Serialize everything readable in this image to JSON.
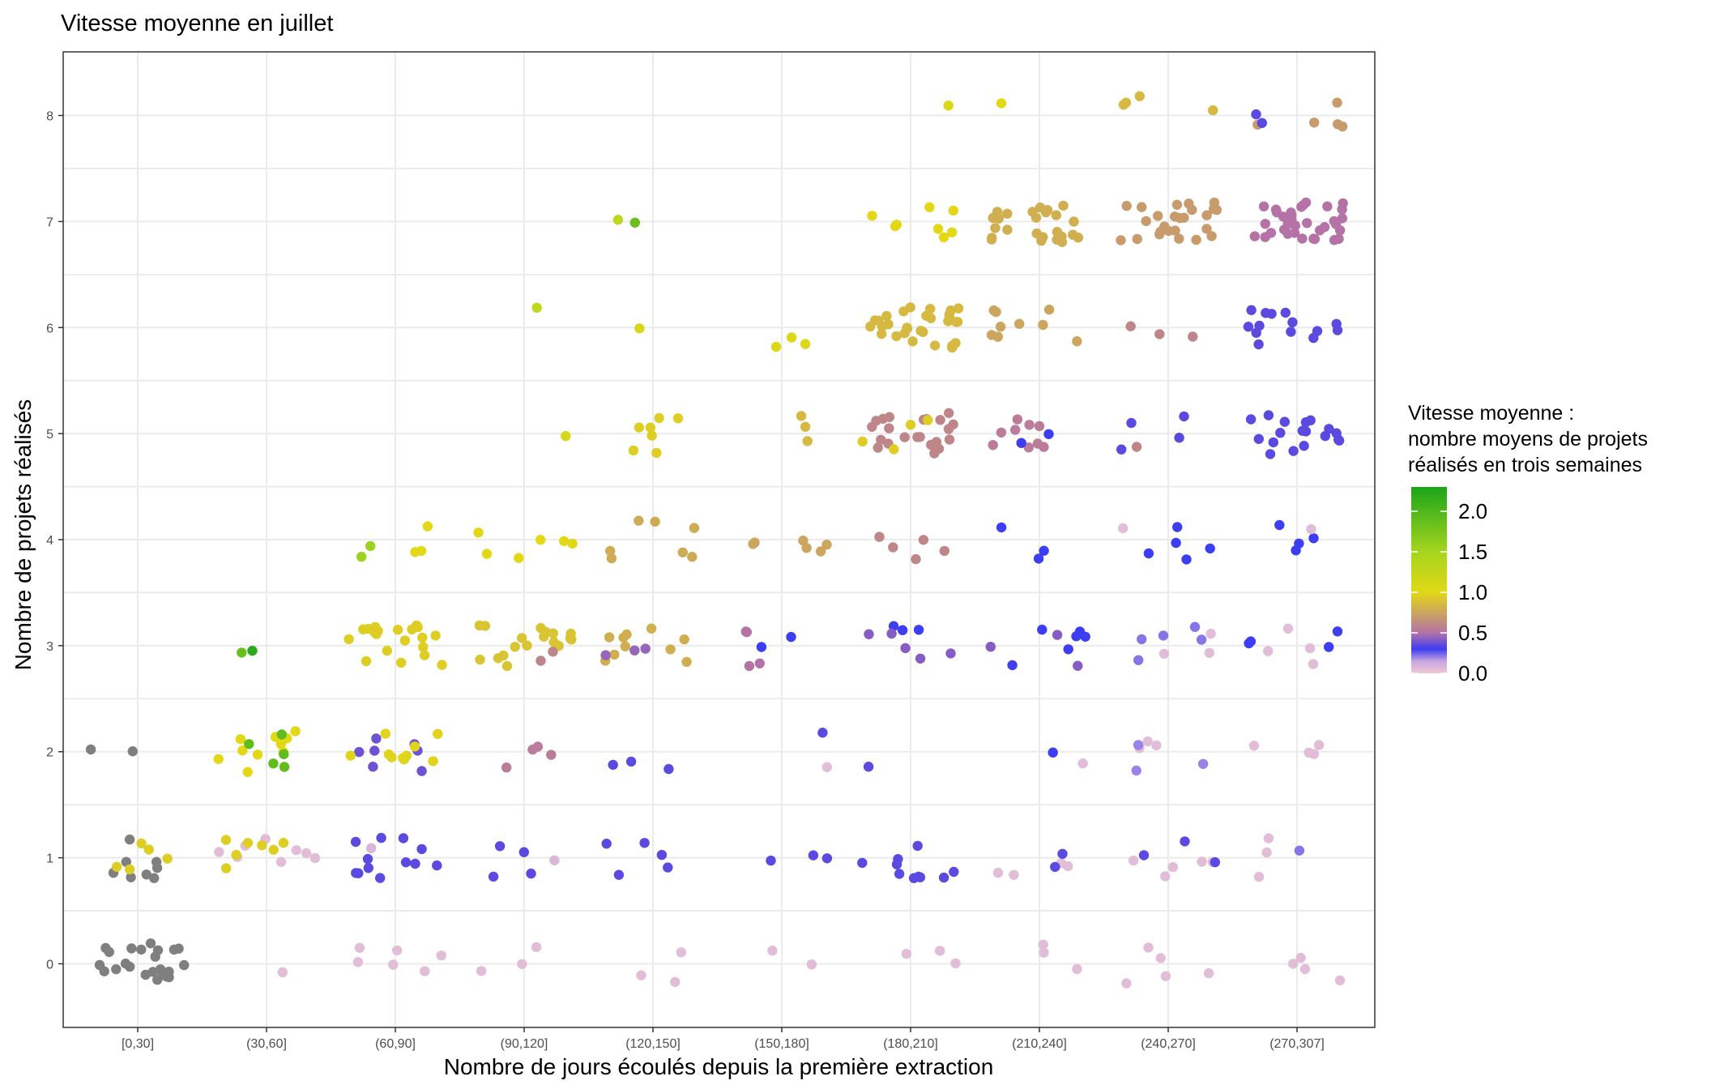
{
  "chart_data": {
    "type": "scatter",
    "title": "Vitesse moyenne en juillet",
    "xlabel": "Nombre de jours écoulés depuis la première extraction",
    "ylabel": "Nombre de projets réalisés",
    "categories": [
      "[0,30]",
      "(30,60]",
      "(60,90]",
      "(90,120]",
      "(120,150]",
      "(150,180]",
      "(180,210]",
      "(210,240]",
      "(240,270]",
      "(270,307]"
    ],
    "y_ticks": [
      0,
      1,
      2,
      3,
      4,
      5,
      6,
      7,
      8
    ],
    "ylim": [
      -0.6,
      8.6
    ],
    "grid": true,
    "legend": {
      "title_lines": [
        "Vitesse moyenne :",
        "nombre moyens de projets",
        "réalisés en trois semaines"
      ],
      "ticks": [
        "0.0",
        "0.5",
        "1.0",
        "1.5",
        "2.0"
      ],
      "tick_values": [
        0,
        0.5,
        1.0,
        1.5,
        2.0
      ],
      "range": [
        0,
        2.3
      ],
      "placement": "right",
      "colors": {
        "0.0": "#f0c8d2",
        "0.15": "#c7a6e0",
        "0.3": "#3d3df2",
        "0.5": "#b572a6",
        "1.0": "#e2d816",
        "1.5": "#a6d51e",
        "2.3": "#1aa51a"
      },
      "na_color": "#7f7f7f"
    },
    "series": [
      {
        "x": "[0,30]",
        "y": 0,
        "count": 24,
        "speed": null
      },
      {
        "x": "[0,30]",
        "y": 1,
        "count": 8,
        "speed": null
      },
      {
        "x": "[0,30]",
        "y": 1,
        "count": 5,
        "speed": 0.95
      },
      {
        "x": "[0,30]",
        "y": 2,
        "count": 2,
        "speed": null
      },
      {
        "x": "(30,60]",
        "y": 0,
        "count": 1,
        "speed": 0.05
      },
      {
        "x": "(30,60]",
        "y": 1,
        "count": 8,
        "speed": 0.05
      },
      {
        "x": "(30,60]",
        "y": 1,
        "count": 7,
        "speed": 0.95
      },
      {
        "x": "(30,60]",
        "y": 2,
        "count": 10,
        "speed": 1.0
      },
      {
        "x": "(30,60]",
        "y": 2,
        "count": 5,
        "speed": 1.9
      },
      {
        "x": "(30,60]",
        "y": 3,
        "count": 1,
        "speed": 2.2
      },
      {
        "x": "(30,60]",
        "y": 3,
        "count": 1,
        "speed": 1.85
      },
      {
        "x": "(60,90]",
        "y": 0,
        "count": 6,
        "speed": 0.05
      },
      {
        "x": "(60,90]",
        "y": 1,
        "count": 12,
        "speed": 0.35
      },
      {
        "x": "(60,90]",
        "y": 1,
        "count": 1,
        "speed": 0.08
      },
      {
        "x": "(60,90]",
        "y": 2,
        "count": 7,
        "speed": 0.38
      },
      {
        "x": "(60,90]",
        "y": 2,
        "count": 10,
        "speed": 0.98
      },
      {
        "x": "(60,90]",
        "y": 3,
        "count": 20,
        "speed": 0.95
      },
      {
        "x": "(60,90]",
        "y": 4,
        "count": 3,
        "speed": 1.0
      },
      {
        "x": "(60,90]",
        "y": 4,
        "count": 2,
        "speed": 1.55
      },
      {
        "x": "(90,120]",
        "y": 0,
        "count": 3,
        "speed": 0.05
      },
      {
        "x": "(90,120]",
        "y": 1,
        "count": 4,
        "speed": 0.35
      },
      {
        "x": "(90,120]",
        "y": 1,
        "count": 1,
        "speed": 0.08
      },
      {
        "x": "(90,120]",
        "y": 2,
        "count": 4,
        "speed": 0.55
      },
      {
        "x": "(90,120]",
        "y": 3,
        "count": 18,
        "speed": 0.9
      },
      {
        "x": "(90,120]",
        "y": 3,
        "count": 2,
        "speed": 0.6
      },
      {
        "x": "(90,120]",
        "y": 4,
        "count": 6,
        "speed": 1.0
      },
      {
        "x": "(90,120]",
        "y": 5,
        "count": 1,
        "speed": 1.1
      },
      {
        "x": "(90,120]",
        "y": 6,
        "count": 1,
        "speed": 1.3
      },
      {
        "x": "(120,150]",
        "y": 0,
        "count": 3,
        "speed": 0.05
      },
      {
        "x": "(120,150]",
        "y": 1,
        "count": 5,
        "speed": 0.35
      },
      {
        "x": "(120,150]",
        "y": 2,
        "count": 3,
        "speed": 0.35
      },
      {
        "x": "(120,150]",
        "y": 3,
        "count": 10,
        "speed": 0.8
      },
      {
        "x": "(120,150]",
        "y": 3,
        "count": 3,
        "speed": 0.45
      },
      {
        "x": "(120,150]",
        "y": 4,
        "count": 7,
        "speed": 0.78
      },
      {
        "x": "(120,150]",
        "y": 5,
        "count": 7,
        "speed": 0.95
      },
      {
        "x": "(120,150]",
        "y": 6,
        "count": 1,
        "speed": 1.1
      },
      {
        "x": "(120,150]",
        "y": 7,
        "count": 1,
        "speed": 1.3
      },
      {
        "x": "(120,150]",
        "y": 7,
        "count": 1,
        "speed": 1.85
      },
      {
        "x": "(150,180]",
        "y": 0,
        "count": 2,
        "speed": 0.05
      },
      {
        "x": "(150,180]",
        "y": 1,
        "count": 3,
        "speed": 0.35
      },
      {
        "x": "(150,180]",
        "y": 2,
        "count": 1,
        "speed": 0.35
      },
      {
        "x": "(150,180]",
        "y": 2,
        "count": 1,
        "speed": 0.05
      },
      {
        "x": "(150,180]",
        "y": 3,
        "count": 2,
        "speed": 0.3
      },
      {
        "x": "(150,180]",
        "y": 3,
        "count": 4,
        "speed": 0.5
      },
      {
        "x": "(150,180]",
        "y": 4,
        "count": 6,
        "speed": 0.75
      },
      {
        "x": "(150,180]",
        "y": 5,
        "count": 3,
        "speed": 0.85
      },
      {
        "x": "(150,180]",
        "y": 6,
        "count": 3,
        "speed": 1.05
      },
      {
        "x": "(180,210]",
        "y": 0,
        "count": 3,
        "speed": 0.05
      },
      {
        "x": "(180,210]",
        "y": 1,
        "count": 10,
        "speed": 0.35
      },
      {
        "x": "(180,210]",
        "y": 2,
        "count": 1,
        "speed": 0.35
      },
      {
        "x": "(180,210]",
        "y": 3,
        "count": 3,
        "speed": 0.3
      },
      {
        "x": "(180,210]",
        "y": 3,
        "count": 5,
        "speed": 0.42
      },
      {
        "x": "(180,210]",
        "y": 4,
        "count": 5,
        "speed": 0.6
      },
      {
        "x": "(180,210]",
        "y": 5,
        "count": 22,
        "speed": 0.6
      },
      {
        "x": "(180,210]",
        "y": 5,
        "count": 4,
        "speed": 0.95
      },
      {
        "x": "(180,210]",
        "y": 6,
        "count": 30,
        "speed": 0.85
      },
      {
        "x": "(180,210]",
        "y": 7,
        "count": 8,
        "speed": 1.0
      },
      {
        "x": "(180,210]",
        "y": 8,
        "count": 1,
        "speed": 1.05
      },
      {
        "x": "(210,240]",
        "y": 0,
        "count": 3,
        "speed": 0.05
      },
      {
        "x": "(210,240]",
        "y": 1,
        "count": 4,
        "speed": 0.05
      },
      {
        "x": "(210,240]",
        "y": 1,
        "count": 2,
        "speed": 0.35
      },
      {
        "x": "(210,240]",
        "y": 2,
        "count": 1,
        "speed": 0.05
      },
      {
        "x": "(210,240]",
        "y": 2,
        "count": 1,
        "speed": 0.3
      },
      {
        "x": "(210,240]",
        "y": 3,
        "count": 6,
        "speed": 0.3
      },
      {
        "x": "(210,240]",
        "y": 3,
        "count": 3,
        "speed": 0.42
      },
      {
        "x": "(210,240]",
        "y": 4,
        "count": 3,
        "speed": 0.3
      },
      {
        "x": "(210,240]",
        "y": 5,
        "count": 9,
        "speed": 0.55
      },
      {
        "x": "(210,240]",
        "y": 5,
        "count": 2,
        "speed": 0.3
      },
      {
        "x": "(210,240]",
        "y": 6,
        "count": 9,
        "speed": 0.75
      },
      {
        "x": "(210,240]",
        "y": 7,
        "count": 25,
        "speed": 0.8
      },
      {
        "x": "(210,240]",
        "y": 8,
        "count": 1,
        "speed": 1.0
      },
      {
        "x": "(240,270]",
        "y": 0,
        "count": 5,
        "speed": 0.05
      },
      {
        "x": "(240,270]",
        "y": 1,
        "count": 5,
        "speed": 0.05
      },
      {
        "x": "(240,270]",
        "y": 1,
        "count": 3,
        "speed": 0.35
      },
      {
        "x": "(240,270]",
        "y": 2,
        "count": 3,
        "speed": 0.05
      },
      {
        "x": "(240,270]",
        "y": 2,
        "count": 3,
        "speed": 0.2
      },
      {
        "x": "(240,270]",
        "y": 3,
        "count": 3,
        "speed": 0.05
      },
      {
        "x": "(240,270]",
        "y": 3,
        "count": 5,
        "speed": 0.22
      },
      {
        "x": "(240,270]",
        "y": 4,
        "count": 5,
        "speed": 0.3
      },
      {
        "x": "(240,270]",
        "y": 4,
        "count": 1,
        "speed": 0.05
      },
      {
        "x": "(240,270]",
        "y": 5,
        "count": 4,
        "speed": 0.35
      },
      {
        "x": "(240,270]",
        "y": 5,
        "count": 1,
        "speed": 0.6
      },
      {
        "x": "(240,270]",
        "y": 6,
        "count": 3,
        "speed": 0.6
      },
      {
        "x": "(240,270]",
        "y": 7,
        "count": 25,
        "speed": 0.7
      },
      {
        "x": "(240,270]",
        "y": 8,
        "count": 4,
        "speed": 0.85
      },
      {
        "x": "(270,307]",
        "y": 0,
        "count": 4,
        "speed": 0.05
      },
      {
        "x": "(270,307]",
        "y": 1,
        "count": 3,
        "speed": 0.05
      },
      {
        "x": "(270,307]",
        "y": 1,
        "count": 1,
        "speed": 0.22
      },
      {
        "x": "(270,307]",
        "y": 2,
        "count": 4,
        "speed": 0.05
      },
      {
        "x": "(270,307]",
        "y": 3,
        "count": 4,
        "speed": 0.05
      },
      {
        "x": "(270,307]",
        "y": 3,
        "count": 4,
        "speed": 0.3
      },
      {
        "x": "(270,307]",
        "y": 4,
        "count": 4,
        "speed": 0.3
      },
      {
        "x": "(270,307]",
        "y": 4,
        "count": 1,
        "speed": 0.05
      },
      {
        "x": "(270,307]",
        "y": 5,
        "count": 18,
        "speed": 0.35
      },
      {
        "x": "(270,307]",
        "y": 6,
        "count": 14,
        "speed": 0.35
      },
      {
        "x": "(270,307]",
        "y": 7,
        "count": 35,
        "speed": 0.5
      },
      {
        "x": "(270,307]",
        "y": 8,
        "count": 5,
        "speed": 0.7
      },
      {
        "x": "(270,307]",
        "y": 8,
        "count": 2,
        "speed": 0.35
      }
    ]
  }
}
